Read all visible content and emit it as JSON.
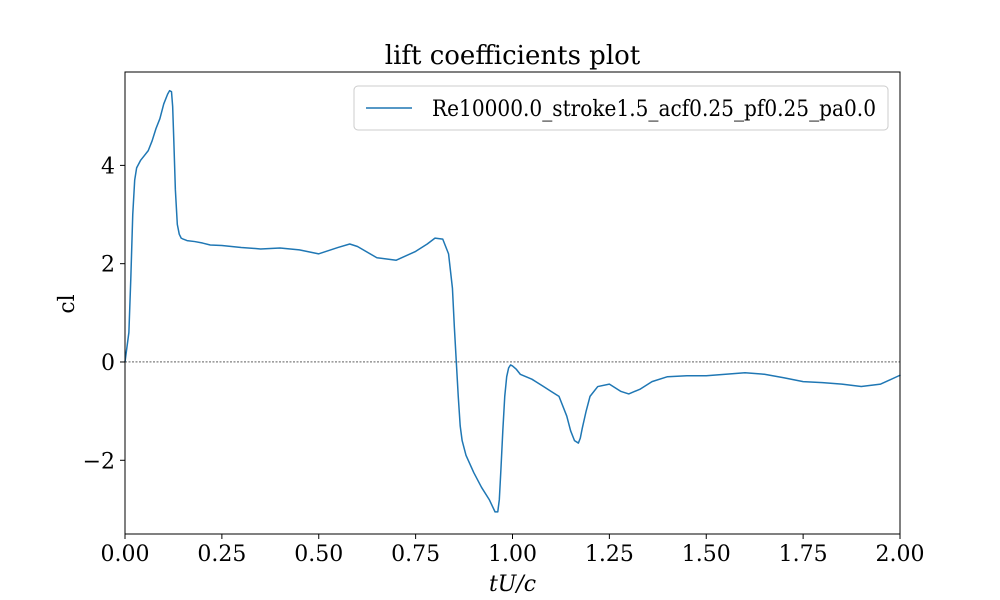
{
  "chart_data": {
    "type": "line",
    "title": "lift coefficients plot",
    "xlabel": "tU/c",
    "ylabel": "cl",
    "xlim": [
      0.0,
      2.0
    ],
    "ylim": [
      -3.5,
      5.9
    ],
    "xticks": [
      0.0,
      0.25,
      0.5,
      0.75,
      1.0,
      1.25,
      1.5,
      1.75,
      2.0
    ],
    "xtick_labels": [
      "0.00",
      "0.25",
      "0.50",
      "0.75",
      "1.00",
      "1.25",
      "1.50",
      "1.75",
      "2.00"
    ],
    "yticks": [
      -2,
      0,
      2,
      4
    ],
    "ytick_labels": [
      "−2",
      "0",
      "2",
      "4"
    ],
    "grid": false,
    "legend_position": "top-right",
    "reference_line": {
      "y": 0,
      "style": "dashed",
      "color": "#000000"
    },
    "series": [
      {
        "name": "Re10000.0_stroke1.5_acf0.25_pf0.25_pa0.0",
        "color": "#1f77b4",
        "x": [
          0.0,
          0.01,
          0.015,
          0.02,
          0.025,
          0.03,
          0.04,
          0.05,
          0.06,
          0.07,
          0.08,
          0.09,
          0.1,
          0.11,
          0.115,
          0.12,
          0.123,
          0.126,
          0.13,
          0.135,
          0.14,
          0.145,
          0.15,
          0.16,
          0.18,
          0.2,
          0.22,
          0.25,
          0.3,
          0.35,
          0.4,
          0.45,
          0.5,
          0.55,
          0.58,
          0.6,
          0.65,
          0.7,
          0.75,
          0.78,
          0.8,
          0.82,
          0.835,
          0.845,
          0.85,
          0.855,
          0.86,
          0.865,
          0.87,
          0.88,
          0.9,
          0.92,
          0.94,
          0.955,
          0.962,
          0.966,
          0.97,
          0.975,
          0.98,
          0.985,
          0.99,
          0.995,
          1.0,
          1.01,
          1.02,
          1.05,
          1.08,
          1.1,
          1.12,
          1.14,
          1.15,
          1.16,
          1.17,
          1.175,
          1.18,
          1.19,
          1.2,
          1.22,
          1.25,
          1.28,
          1.3,
          1.33,
          1.36,
          1.4,
          1.45,
          1.5,
          1.55,
          1.6,
          1.65,
          1.7,
          1.75,
          1.8,
          1.85,
          1.9,
          1.95,
          2.0
        ],
        "y": [
          0.0,
          0.6,
          1.7,
          3.0,
          3.7,
          3.95,
          4.1,
          4.2,
          4.3,
          4.5,
          4.75,
          4.95,
          5.25,
          5.45,
          5.52,
          5.5,
          5.2,
          4.5,
          3.5,
          2.8,
          2.6,
          2.52,
          2.5,
          2.47,
          2.45,
          2.42,
          2.38,
          2.37,
          2.33,
          2.3,
          2.32,
          2.28,
          2.2,
          2.33,
          2.4,
          2.35,
          2.12,
          2.07,
          2.25,
          2.4,
          2.52,
          2.5,
          2.2,
          1.5,
          0.7,
          0.0,
          -0.7,
          -1.3,
          -1.6,
          -1.9,
          -2.25,
          -2.55,
          -2.8,
          -3.05,
          -3.05,
          -2.8,
          -2.2,
          -1.4,
          -0.7,
          -0.3,
          -0.12,
          -0.06,
          -0.08,
          -0.15,
          -0.25,
          -0.35,
          -0.5,
          -0.6,
          -0.7,
          -1.1,
          -1.4,
          -1.6,
          -1.65,
          -1.55,
          -1.35,
          -1.0,
          -0.7,
          -0.5,
          -0.45,
          -0.6,
          -0.65,
          -0.55,
          -0.4,
          -0.3,
          -0.28,
          -0.28,
          -0.25,
          -0.22,
          -0.25,
          -0.32,
          -0.4,
          -0.42,
          -0.45,
          -0.5,
          -0.45,
          -0.27
        ]
      }
    ]
  }
}
